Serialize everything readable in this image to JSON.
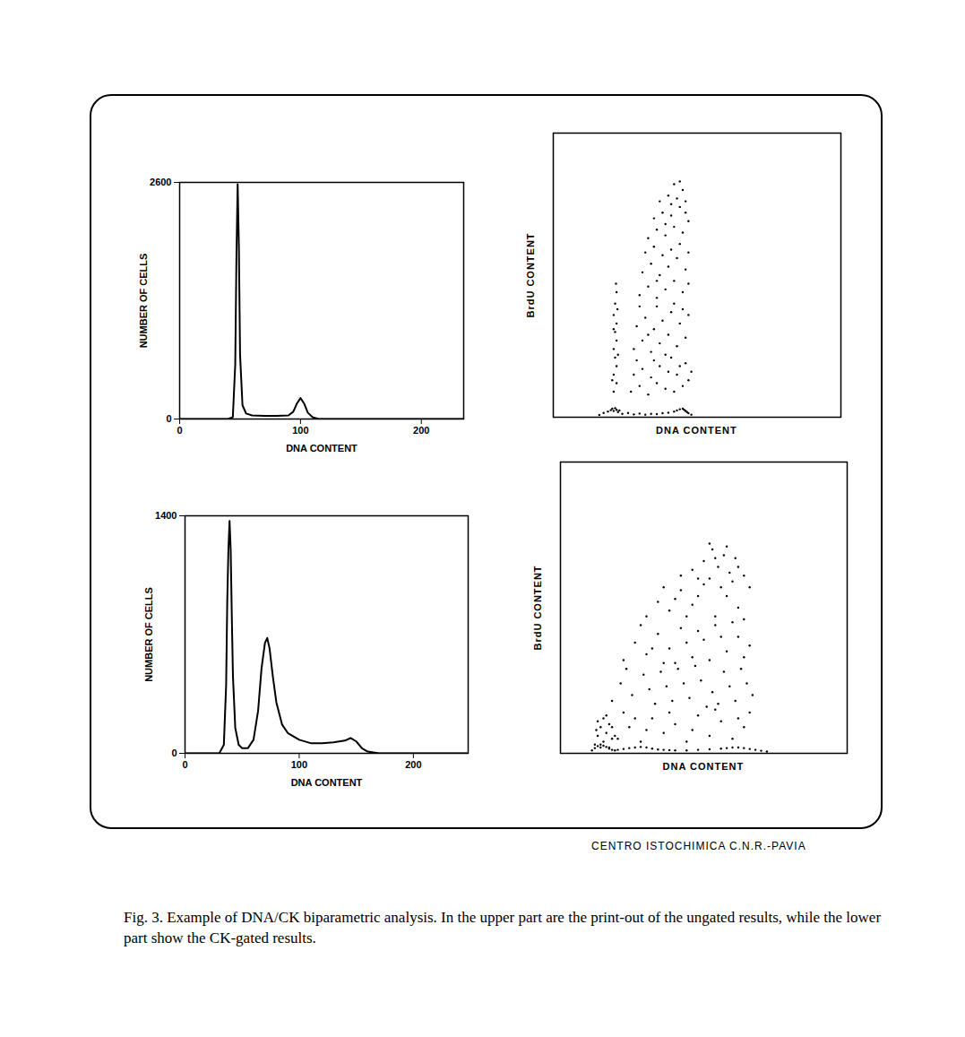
{
  "chart_data": [
    {
      "type": "line",
      "xlabel": "DNA CONTENT",
      "ylabel": "NUMBER OF CELLS",
      "color": "#000000",
      "x": [
        0,
        40,
        44,
        46,
        47,
        48,
        49,
        50,
        52,
        55,
        60,
        70,
        80,
        90,
        94,
        97,
        100,
        103,
        106,
        110,
        115,
        235
      ],
      "values": [
        0,
        0,
        20,
        600,
        1800,
        2580,
        1900,
        700,
        150,
        60,
        40,
        35,
        35,
        40,
        80,
        170,
        230,
        170,
        70,
        20,
        0,
        0
      ],
      "xlim": [
        0,
        235
      ],
      "ylim": [
        0,
        2600
      ],
      "xticks": [
        0,
        100,
        200
      ],
      "yticks": [
        0,
        2600
      ]
    },
    {
      "type": "scatter",
      "xlabel": "DNA CONTENT",
      "ylabel": "BrdU CONTENT",
      "color": "#000000",
      "tick_labels": false,
      "xlim": [
        0,
        100
      ],
      "ylim": [
        0,
        100
      ],
      "x": [
        21,
        22,
        21,
        22,
        21.5,
        21,
        22,
        21.5,
        22,
        21,
        21.5,
        22,
        21.8,
        20.5,
        22.5,
        21,
        22.3,
        27,
        30,
        33,
        36,
        39,
        42,
        45,
        47,
        28,
        31,
        34,
        37,
        40,
        43,
        46,
        29,
        35,
        41,
        44,
        48,
        28,
        31,
        34,
        37,
        40,
        43,
        46,
        29,
        32,
        35,
        38,
        41,
        44,
        47,
        30,
        36,
        42,
        45,
        33,
        39,
        30,
        33,
        36,
        39,
        42,
        45,
        47,
        31,
        34,
        37,
        40,
        43,
        46,
        32,
        35,
        38,
        41,
        44,
        47,
        36,
        33,
        36,
        39,
        42,
        45,
        47,
        35,
        38,
        41,
        44,
        46,
        37,
        40,
        43,
        45,
        42,
        44,
        39,
        46,
        41,
        16,
        17.5,
        19,
        20,
        20.5,
        21,
        21.5,
        22,
        22.5,
        23,
        24,
        26,
        28,
        30,
        32,
        34,
        36,
        38,
        40,
        42,
        43,
        44,
        45,
        45.5,
        46,
        46.5,
        47,
        48
      ],
      "values": [
        9,
        12,
        15,
        18,
        21,
        24,
        27,
        30,
        33,
        36,
        40,
        44,
        47,
        13,
        22,
        31,
        38,
        9,
        11,
        8,
        12,
        10,
        9,
        11,
        13,
        15,
        17,
        14,
        18,
        16,
        15,
        19,
        20,
        20,
        21,
        18,
        16,
        24,
        27,
        23,
        26,
        29,
        25,
        28,
        32,
        35,
        31,
        34,
        37,
        33,
        36,
        39,
        39,
        40,
        38,
        29,
        22,
        43,
        46,
        42,
        45,
        48,
        44,
        47,
        51,
        54,
        50,
        53,
        56,
        52,
        58,
        60,
        57,
        59,
        61,
        58,
        48,
        63,
        66,
        64,
        67,
        65,
        69,
        70,
        72,
        71,
        74,
        72,
        76,
        78,
        77,
        80,
        82,
        83,
        68,
        76,
        75,
        0.8,
        1.5,
        2,
        2.5,
        3,
        2.2,
        3.2,
        2.6,
        1.8,
        2.4,
        1.2,
        1.5,
        1,
        1.3,
        0.9,
        1.2,
        1.1,
        1.4,
        1.6,
        2,
        2.4,
        2.8,
        3,
        2.6,
        2.2,
        1.8,
        1.4,
        0.9
      ]
    },
    {
      "type": "line",
      "xlabel": "DNA CONTENT",
      "ylabel": "NUMBER OF CELLS",
      "color": "#000000",
      "x": [
        0,
        30,
        34,
        36,
        37,
        38,
        39,
        40,
        41,
        42,
        44,
        47,
        50,
        55,
        60,
        64,
        67,
        70,
        72,
        74,
        77,
        80,
        85,
        90,
        100,
        110,
        120,
        130,
        140,
        145,
        150,
        155,
        160,
        170,
        248
      ],
      "values": [
        0,
        0,
        50,
        400,
        900,
        1200,
        1370,
        1200,
        800,
        450,
        150,
        50,
        30,
        30,
        80,
        250,
        500,
        650,
        680,
        620,
        450,
        300,
        170,
        120,
        80,
        60,
        60,
        65,
        75,
        90,
        70,
        30,
        10,
        0,
        0
      ],
      "xlim": [
        0,
        248
      ],
      "ylim": [
        0,
        1400
      ],
      "xticks": [
        0,
        100,
        200
      ],
      "yticks": [
        0,
        1400
      ]
    },
    {
      "type": "scatter",
      "xlabel": "DNA CONTENT",
      "ylabel": "BrdU CONTENT",
      "color": "#000000",
      "tick_labels": false,
      "xlim": [
        0,
        100
      ],
      "ylim": [
        0,
        100
      ],
      "x": [
        12,
        13,
        14,
        15,
        16,
        17,
        18,
        13,
        15,
        17,
        14,
        16,
        18,
        19,
        12.5,
        20,
        24,
        28,
        32,
        36,
        40,
        44,
        48,
        52,
        56,
        60,
        64,
        66,
        22,
        30,
        38,
        46,
        54,
        62,
        26,
        18,
        21,
        25,
        29,
        33,
        37,
        41,
        45,
        49,
        53,
        57,
        61,
        65,
        23,
        31,
        39,
        47,
        55,
        63,
        35,
        43,
        51,
        59,
        67,
        22,
        26,
        30,
        34,
        38,
        42,
        46,
        50,
        54,
        58,
        62,
        66,
        28,
        36,
        44,
        52,
        60,
        64,
        40,
        48,
        56,
        32,
        30,
        34,
        38,
        42,
        46,
        50,
        54,
        58,
        62,
        66,
        36,
        44,
        48,
        52,
        56,
        60,
        64,
        40,
        42,
        46,
        50,
        53,
        55,
        57,
        59,
        61,
        64,
        52,
        48,
        58,
        62,
        54,
        11,
        12,
        13,
        14,
        15,
        16,
        17,
        18,
        19,
        20,
        22,
        24,
        26,
        28,
        30,
        32,
        34,
        36,
        38,
        40,
        44,
        48,
        52,
        56,
        58,
        60,
        62,
        64,
        66,
        68,
        70,
        72
      ],
      "values": [
        3,
        6,
        9,
        4,
        7,
        10,
        5,
        11,
        12,
        2,
        2,
        13,
        9,
        6,
        8,
        5,
        9,
        4,
        12,
        7,
        10,
        4,
        13,
        6,
        11,
        5,
        9,
        14,
        14,
        8,
        14,
        8,
        15,
        12,
        12,
        18,
        24,
        20,
        27,
        17,
        23,
        29,
        19,
        25,
        21,
        28,
        18,
        24,
        29,
        22,
        18,
        30,
        17,
        29,
        28,
        24,
        16,
        23,
        20,
        32,
        38,
        34,
        41,
        36,
        43,
        33,
        39,
        44,
        35,
        40,
        37,
        44,
        31,
        38,
        32,
        45,
        33,
        31,
        42,
        40,
        36,
        47,
        52,
        49,
        56,
        51,
        58,
        47,
        54,
        50,
        57,
        57,
        47,
        54,
        60,
        57,
        59,
        46,
        53,
        61,
        63,
        66,
        70,
        64,
        68,
        62,
        67,
        61,
        72,
        60,
        71,
        64,
        67,
        1,
        1.8,
        2.5,
        3,
        2.6,
        2.2,
        1.6,
        1.2,
        1,
        1.2,
        1.5,
        1.8,
        2,
        2.2,
        2,
        1.6,
        1.3,
        1.2,
        1.1,
        1,
        1,
        1.2,
        1.4,
        1.6,
        1.8,
        2,
        2,
        1.8,
        1.5,
        1.2,
        0.9,
        0.6
      ]
    }
  ],
  "credit": "CENTRO ISTOCHIMICA C.N.R.-PAVIA",
  "caption": "Fig. 3. Example of DNA/CK biparametric analysis. In the upper part are the print-out of the ungated results, while the lower part show the CK-gated results."
}
